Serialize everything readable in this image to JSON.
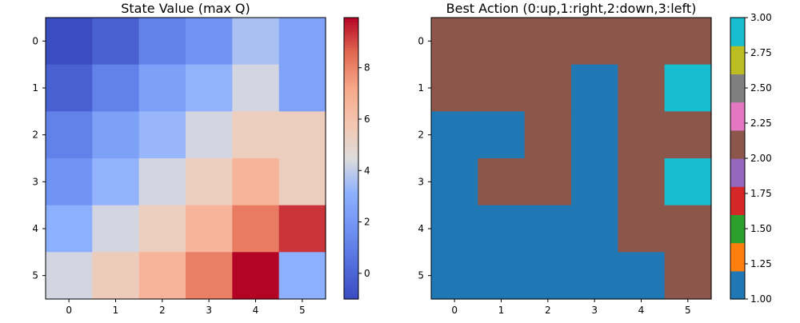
{
  "chart_data": [
    {
      "type": "heatmap",
      "title": "State Value (max Q)",
      "x_ticks": [
        "0",
        "1",
        "2",
        "3",
        "4",
        "5"
      ],
      "y_ticks": [
        "0",
        "1",
        "2",
        "3",
        "4",
        "5"
      ],
      "colormap": "coolwarm",
      "vmin": -1.0,
      "vmax": 9.95,
      "colorbar_ticks": [
        0,
        2,
        4,
        6,
        8
      ],
      "colorbar_tick_labels": [
        "0",
        "2",
        "4",
        "6",
        "8"
      ],
      "grid": false,
      "values": [
        [
          -1.0,
          -0.2,
          1.1,
          1.8,
          3.6,
          2.5
        ],
        [
          -0.2,
          1.1,
          2.4,
          3.2,
          4.3,
          2.5
        ],
        [
          1.1,
          2.4,
          3.3,
          4.3,
          5.4,
          5.4
        ],
        [
          1.8,
          3.2,
          4.3,
          5.4,
          6.6,
          5.4
        ],
        [
          3.1,
          4.3,
          5.4,
          6.6,
          8.2,
          9.3
        ],
        [
          4.3,
          5.5,
          6.6,
          8.1,
          9.95,
          3.1
        ]
      ]
    },
    {
      "type": "heatmap",
      "title": "Best Action (0:up,1:right,2:down,3:left)",
      "x_ticks": [
        "0",
        "1",
        "2",
        "3",
        "4",
        "5"
      ],
      "y_ticks": [
        "0",
        "1",
        "2",
        "3",
        "4",
        "5"
      ],
      "colormap": "tab10",
      "vmin": 1.0,
      "vmax": 3.0,
      "colorbar_ticks": [
        1.0,
        1.25,
        1.5,
        1.75,
        2.0,
        2.25,
        2.5,
        2.75,
        3.0
      ],
      "colorbar_tick_labels": [
        "1.00",
        "1.25",
        "1.50",
        "1.75",
        "2.00",
        "2.25",
        "2.50",
        "2.75",
        "3.00"
      ],
      "palette": [
        "#1f77b4",
        "#ff7f0e",
        "#2ca02c",
        "#d62728",
        "#9467bd",
        "#8c564b",
        "#e377c2",
        "#7f7f7f",
        "#bcbd22",
        "#17becf"
      ],
      "grid": false,
      "values": [
        [
          2,
          2,
          2,
          2,
          2,
          2
        ],
        [
          2,
          2,
          2,
          1,
          2,
          3
        ],
        [
          1,
          1,
          2,
          1,
          2,
          2
        ],
        [
          1,
          2,
          2,
          1,
          2,
          3
        ],
        [
          1,
          1,
          1,
          1,
          2,
          2
        ],
        [
          1,
          1,
          1,
          1,
          1,
          2
        ]
      ]
    }
  ]
}
